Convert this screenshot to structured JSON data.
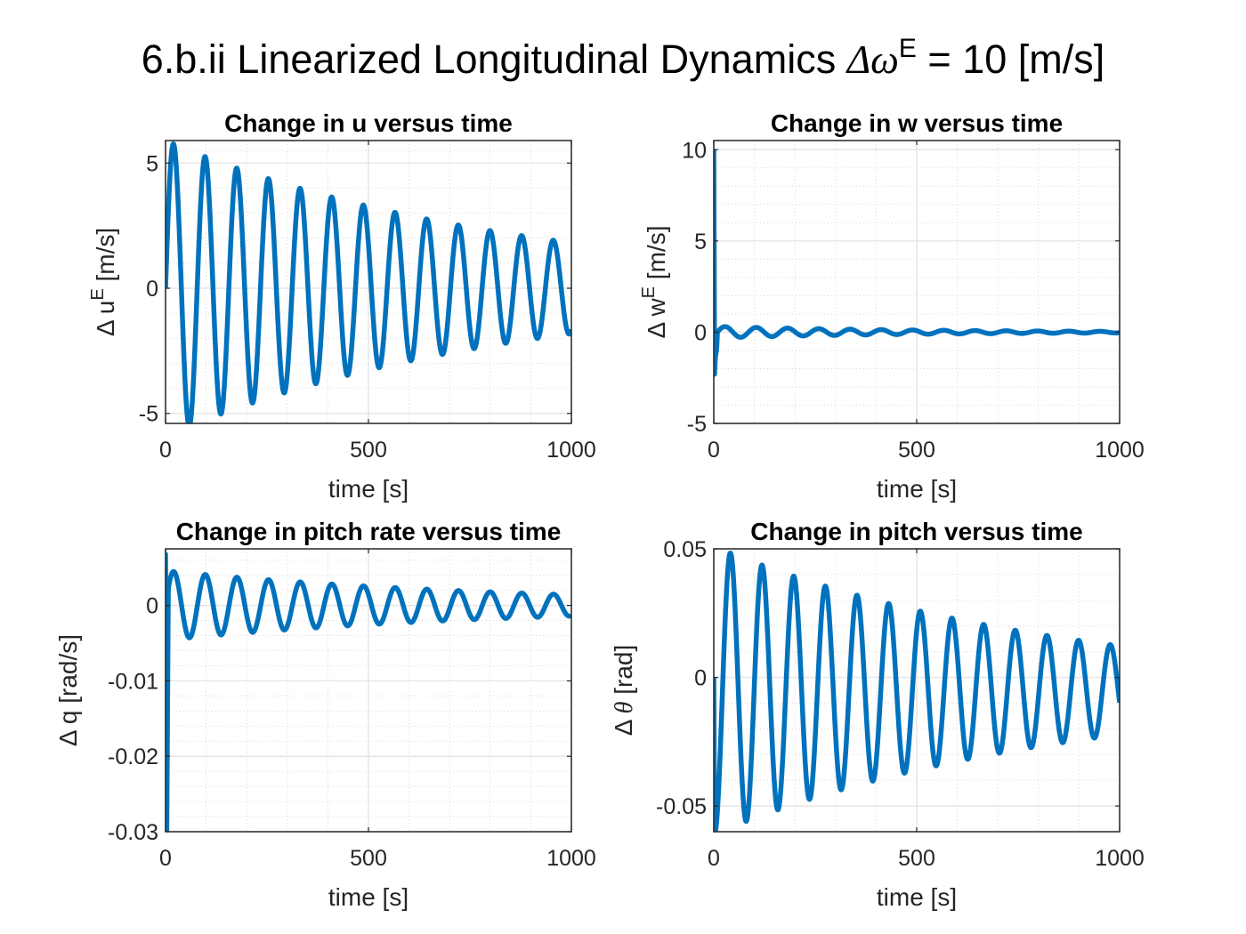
{
  "figure": {
    "title_prefix": "6.b.ii Linearized Longitudinal Dynamics ",
    "title_symbol": "Δω",
    "title_sup": "E",
    "title_suffix": " = 10 [m/s]",
    "line_color": "#0072BD",
    "grid_color": "#e6e6e6"
  },
  "chart_data": [
    {
      "type": "line",
      "title": "Change in u versus time",
      "xlabel": "time [s]",
      "ylabel_main": "Δ u",
      "ylabel_sup": "E",
      "ylabel_unit": " [m/s]",
      "xlim": [
        0,
        1000
      ],
      "ylim": [
        -5.4,
        5.9
      ],
      "xticks": [
        0,
        500,
        1000
      ],
      "yticks": [
        -5,
        0,
        5
      ],
      "ytick_labels": [
        "-5",
        "0",
        "5"
      ],
      "yminor": [
        -4,
        -3,
        -2,
        -1,
        1,
        2,
        3,
        4,
        5.5
      ],
      "signal": {
        "kind": "osc",
        "y0": 0,
        "amp": 5.9,
        "tau": 850,
        "period": 78,
        "phase": 0
      },
      "series": [
        {
          "name": "",
          "note": "damped oscillation sampled over 0-1000 s"
        }
      ]
    },
    {
      "type": "line",
      "title": "Change in w versus time",
      "xlabel": "time [s]",
      "ylabel_main": "Δ w",
      "ylabel_sup": "E",
      "ylabel_unit": " [m/s]",
      "xlim": [
        0,
        1000
      ],
      "ylim": [
        -5,
        10.5
      ],
      "xticks": [
        0,
        500,
        1000
      ],
      "yticks": [
        -5,
        0,
        5,
        10
      ],
      "ytick_labels": [
        "-5",
        "0",
        "5",
        "10"
      ],
      "yminor": [
        -4,
        -3,
        -2,
        -1,
        1,
        2,
        3,
        4,
        6,
        7,
        8,
        9
      ],
      "signal": {
        "kind": "wspike",
        "amp": 0.32,
        "tau": 500,
        "period": 77
      }
    },
    {
      "type": "line",
      "title": "Change in pitch rate versus time",
      "xlabel": "time [s]",
      "ylabel_main": "Δ q",
      "ylabel_sup": "",
      "ylabel_unit": " [rad/s]",
      "xlim": [
        0,
        1000
      ],
      "ylim": [
        -0.03,
        0.0075
      ],
      "xticks": [
        0,
        500,
        1000
      ],
      "yticks": [
        -0.03,
        -0.02,
        -0.01,
        0
      ],
      "ytick_labels": [
        "-0.03",
        "-0.02",
        "-0.01",
        "0"
      ],
      "yminor": [
        -0.028,
        -0.026,
        -0.024,
        -0.022,
        -0.018,
        -0.016,
        -0.014,
        -0.012,
        -0.008,
        -0.006,
        -0.004,
        -0.002,
        0.002,
        0.004,
        0.006
      ],
      "signal": {
        "kind": "qspike",
        "amp": 0.0046,
        "tau": 850,
        "period": 78
      }
    },
    {
      "type": "line",
      "title": "Change in pitch versus time",
      "xlabel": "time [s]",
      "ylabel_main": "Δ θ",
      "ylabel_sup": "",
      "ylabel_unit": " [rad]",
      "xlim": [
        0,
        1000
      ],
      "ylim": [
        -0.06,
        0.05
      ],
      "xticks": [
        0,
        500,
        1000
      ],
      "yticks": [
        -0.05,
        0,
        0.05
      ],
      "ytick_labels": [
        "-0.05",
        "0",
        "0.05"
      ],
      "yminor": [
        -0.04,
        -0.03,
        -0.02,
        -0.01,
        0.01,
        0.02,
        0.03,
        0.04
      ],
      "signal": {
        "kind": "theta",
        "offset": -0.005,
        "amp": 0.056,
        "tau": 850,
        "period": 78
      }
    }
  ]
}
